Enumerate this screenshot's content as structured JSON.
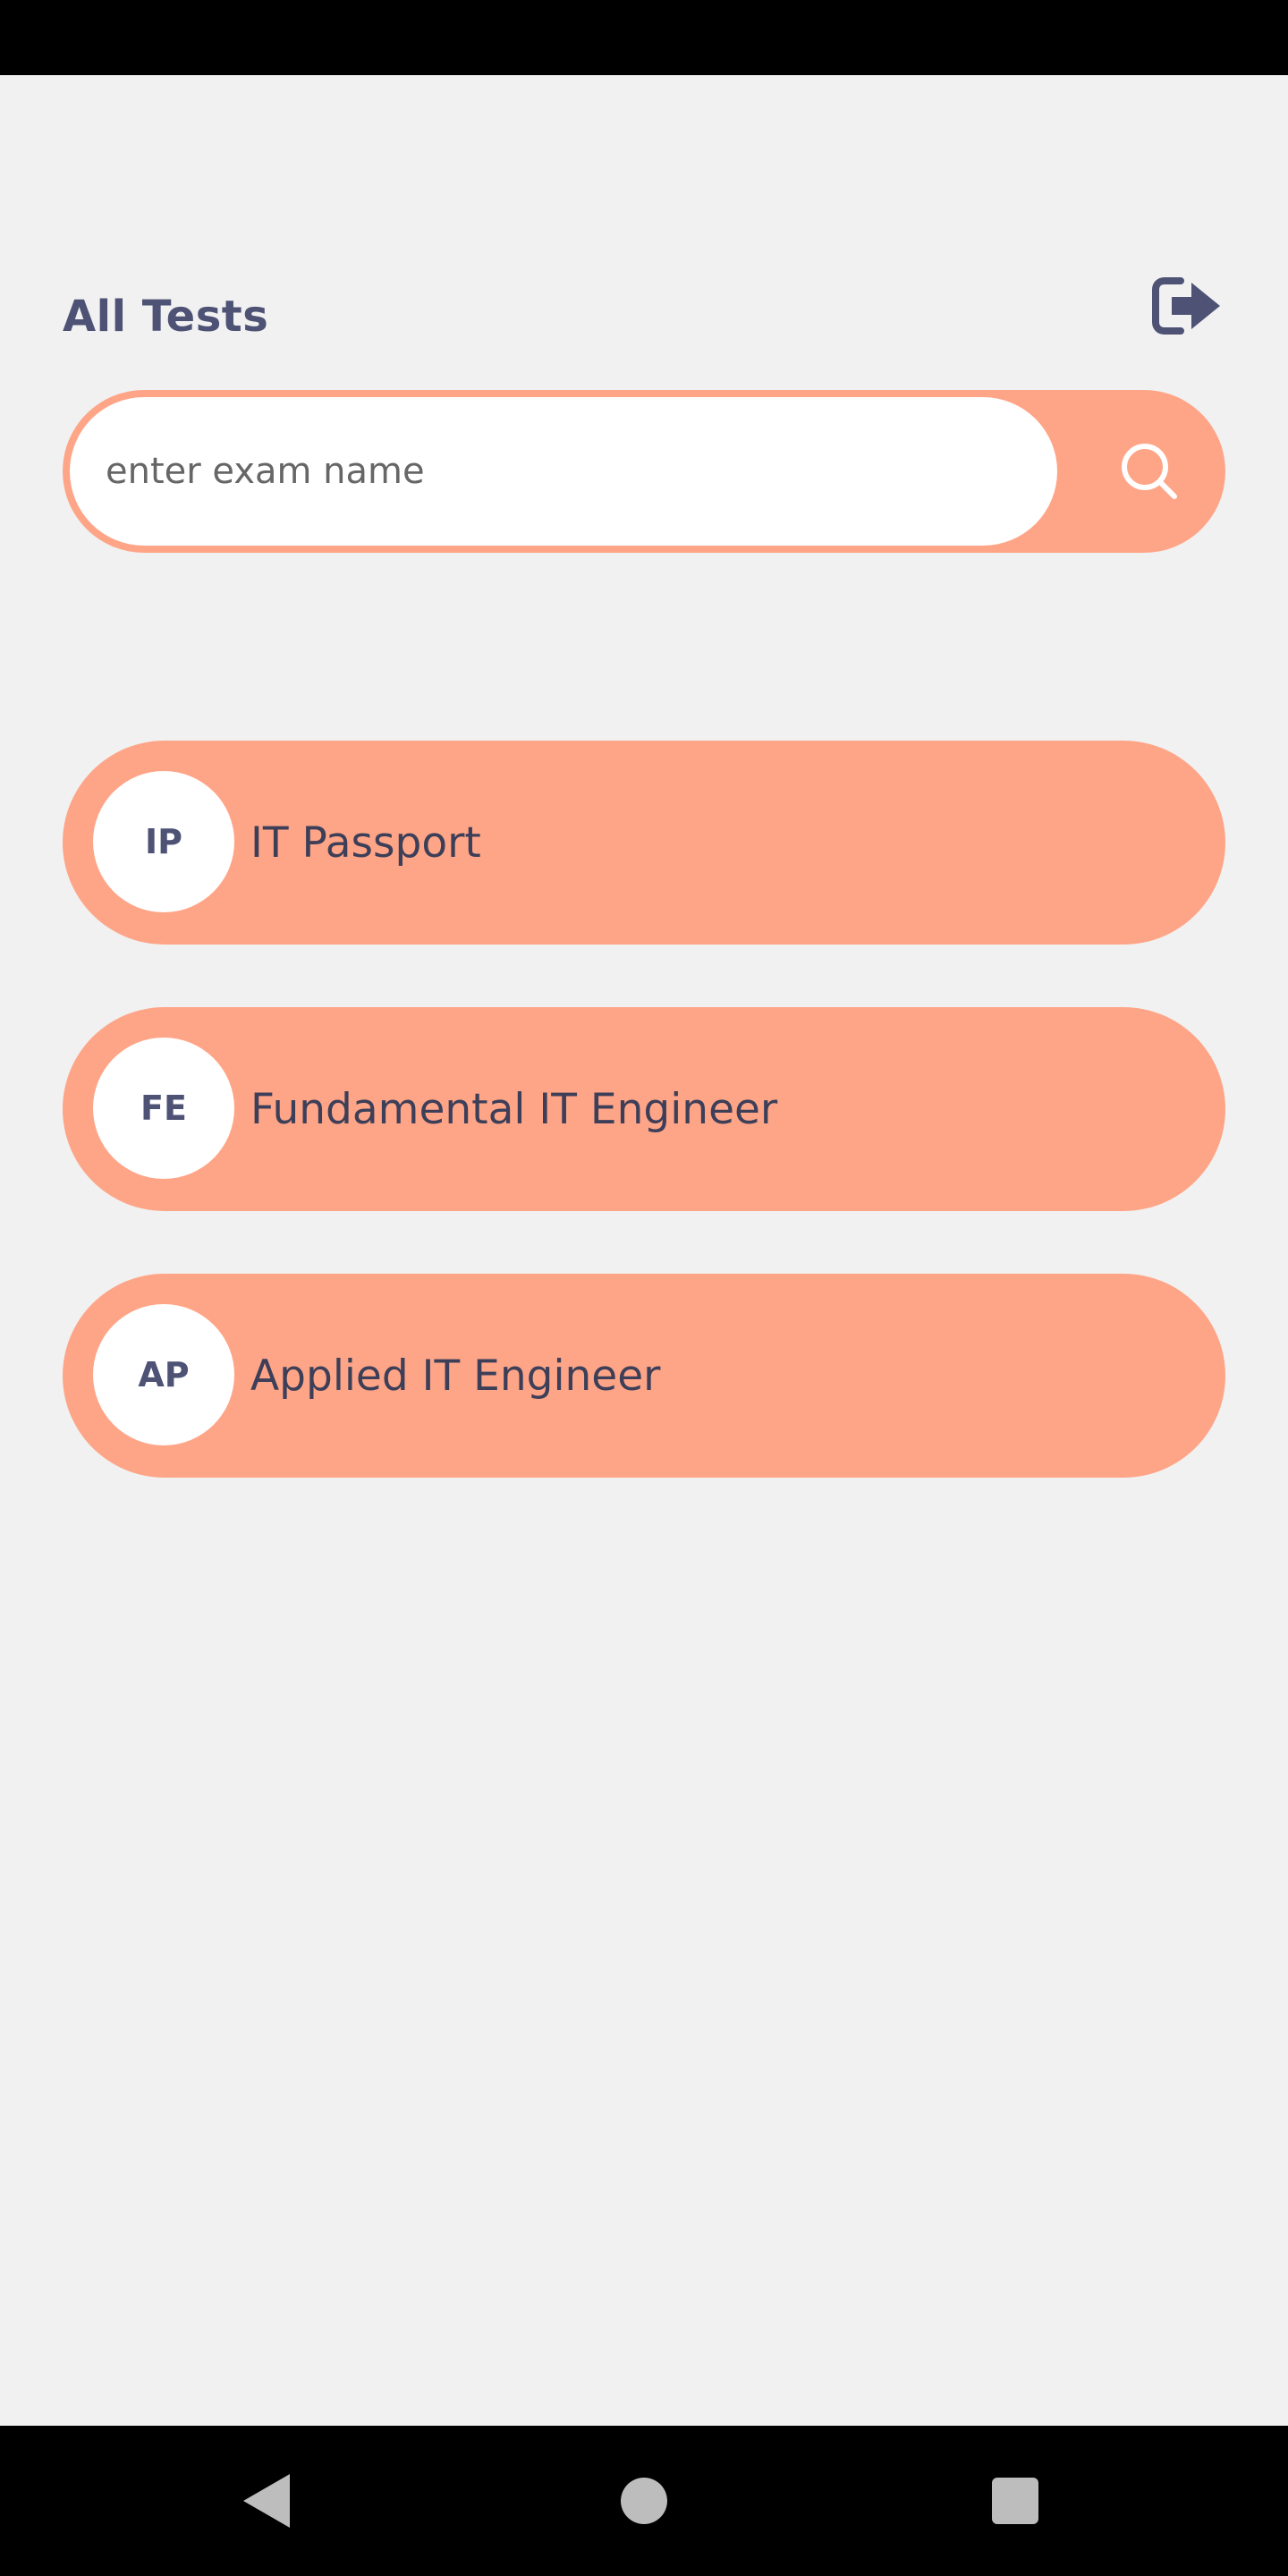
{
  "header": {
    "title": "All Tests",
    "logout_icon": "logout-icon"
  },
  "search": {
    "placeholder": "enter exam name",
    "value": "",
    "icon": "search-icon"
  },
  "exams": [
    {
      "badge": "IP",
      "name": "IT Passport"
    },
    {
      "badge": "FE",
      "name": "Fundamental IT Engineer"
    },
    {
      "badge": "AP",
      "name": "Applied IT Engineer"
    }
  ],
  "navigation": {
    "back_icon": "back-triangle-icon",
    "home_icon": "home-circle-icon",
    "recents_icon": "recents-square-icon"
  },
  "colors": {
    "background": "#f1f1f1",
    "accent": "#ffa587",
    "text_primary": "#4e5275",
    "bars": "#000000"
  }
}
